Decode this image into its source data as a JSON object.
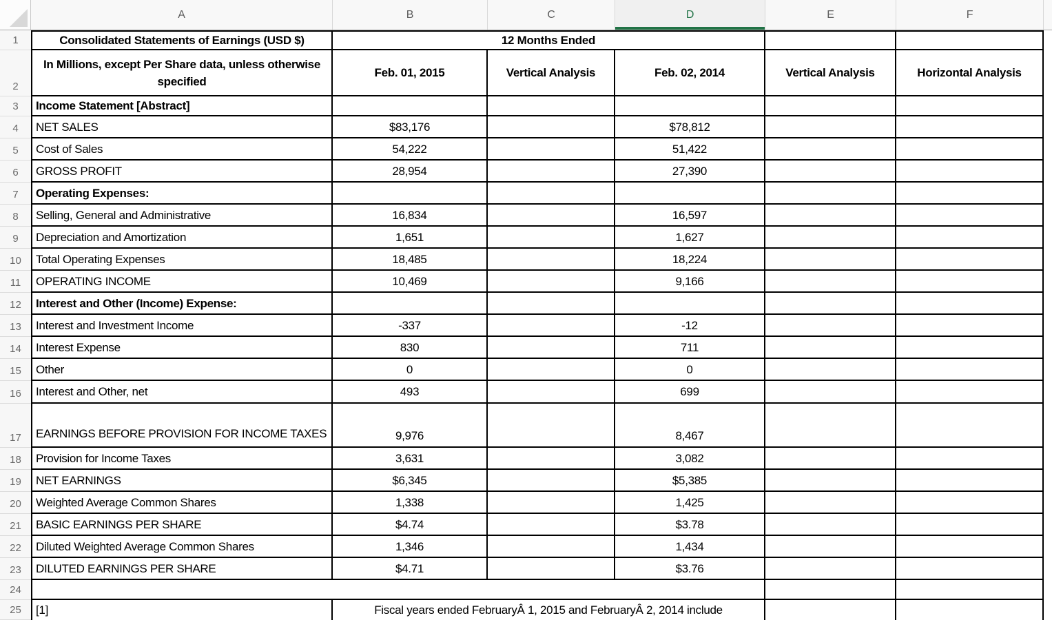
{
  "sheet": {
    "column_headers": [
      "A",
      "B",
      "C",
      "D",
      "E",
      "F"
    ],
    "selected_column": "D",
    "colors": {
      "selection_green": "#217346",
      "grid_line": "#000000"
    },
    "visible_row_numbers": [
      "1",
      "2",
      "3",
      "4",
      "5",
      "6",
      "7",
      "8",
      "9",
      "10",
      "11",
      "12",
      "13",
      "14",
      "15",
      "16",
      "17",
      "18",
      "19",
      "20",
      "21",
      "22",
      "23",
      "24",
      "25"
    ],
    "row1": {
      "a": "Consolidated Statements of Earnings (USD $)",
      "period_header": "12 Months Ended"
    },
    "row2": {
      "a": "In Millions, except Per Share data, unless otherwise specified",
      "b": "Feb. 01, 2015",
      "c": "Vertical Analysis",
      "d": "Feb. 02, 2014",
      "e": "Vertical Analysis",
      "f": "Horizontal Analysis"
    },
    "data_rows": [
      {
        "n": 3,
        "label": "Income Statement [Abstract]",
        "bold": true,
        "feb_2015": "",
        "feb_2014": ""
      },
      {
        "n": 4,
        "label": "NET SALES",
        "bold": false,
        "feb_2015": "$83,176",
        "feb_2014": "$78,812"
      },
      {
        "n": 5,
        "label": "Cost of Sales",
        "bold": false,
        "feb_2015": "54,222",
        "feb_2014": "51,422"
      },
      {
        "n": 6,
        "label": "GROSS PROFIT",
        "bold": false,
        "feb_2015": "28,954",
        "feb_2014": "27,390"
      },
      {
        "n": 7,
        "label": "Operating Expenses:",
        "bold": true,
        "feb_2015": "",
        "feb_2014": ""
      },
      {
        "n": 8,
        "label": "Selling, General and Administrative",
        "bold": false,
        "feb_2015": "16,834",
        "feb_2014": "16,597"
      },
      {
        "n": 9,
        "label": "Depreciation and Amortization",
        "bold": false,
        "feb_2015": "1,651",
        "feb_2014": "1,627"
      },
      {
        "n": 10,
        "label": "Total Operating Expenses",
        "bold": false,
        "feb_2015": "18,485",
        "feb_2014": "18,224"
      },
      {
        "n": 11,
        "label": "OPERATING INCOME",
        "bold": false,
        "feb_2015": "10,469",
        "feb_2014": "9,166"
      },
      {
        "n": 12,
        "label": "Interest and Other (Income) Expense:",
        "bold": true,
        "feb_2015": "",
        "feb_2014": ""
      },
      {
        "n": 13,
        "label": "Interest and Investment Income",
        "bold": false,
        "feb_2015": "-337",
        "feb_2014": "-12"
      },
      {
        "n": 14,
        "label": "Interest Expense",
        "bold": false,
        "feb_2015": "830",
        "feb_2014": "711"
      },
      {
        "n": 15,
        "label": "Other",
        "bold": false,
        "feb_2015": "0",
        "feb_2014": "0"
      },
      {
        "n": 16,
        "label": "Interest and Other, net",
        "bold": false,
        "feb_2015": "493",
        "feb_2014": "699"
      },
      {
        "n": 17,
        "label": "EARNINGS BEFORE PROVISION FOR INCOME TAXES",
        "bold": false,
        "feb_2015": "9,976",
        "feb_2014": "8,467"
      },
      {
        "n": 18,
        "label": "Provision for Income Taxes",
        "bold": false,
        "feb_2015": "3,631",
        "feb_2014": "3,082"
      },
      {
        "n": 19,
        "label": "NET EARNINGS",
        "bold": false,
        "feb_2015": "$6,345",
        "feb_2014": "$5,385"
      },
      {
        "n": 20,
        "label": "Weighted Average Common Shares",
        "bold": false,
        "feb_2015": "1,338",
        "feb_2014": "1,425"
      },
      {
        "n": 21,
        "label": "BASIC EARNINGS PER SHARE",
        "bold": false,
        "feb_2015": "$4.74",
        "feb_2014": "$3.78"
      },
      {
        "n": 22,
        "label": "Diluted Weighted Average Common Shares",
        "bold": false,
        "feb_2015": "1,346",
        "feb_2014": "1,434"
      },
      {
        "n": 23,
        "label": "DILUTED EARNINGS PER SHARE",
        "bold": false,
        "feb_2015": "$4.71",
        "feb_2014": "$3.76"
      }
    ],
    "row25": {
      "a": "[1]",
      "note": "Fiscal years ended FebruaryÂ 1, 2015 and FebruaryÂ 2, 2014 include"
    }
  }
}
